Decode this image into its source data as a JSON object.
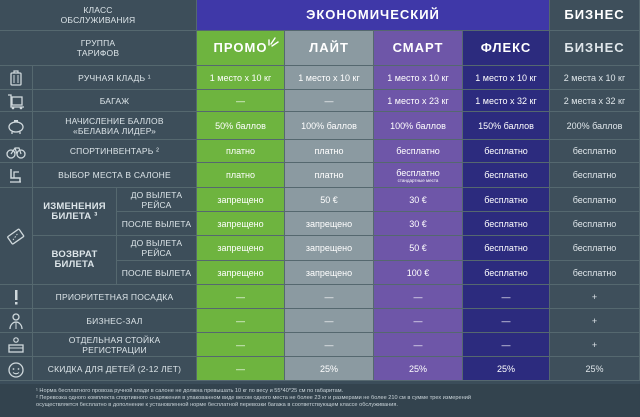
{
  "header": {
    "class_label": "КЛАСС\nОБСЛУЖИВАНИЯ",
    "economy": "ЭКОНОМИЧЕСКИЙ",
    "business": "БИЗНЕС",
    "group_label": "ГРУППА\nТАРИФОВ",
    "tariffs": [
      "ПРОМО",
      "ЛАЙТ",
      "СМАРТ",
      "ФЛЕКС",
      "БИЗНЕС"
    ]
  },
  "rows": {
    "hand_luggage": {
      "label": "РУЧНАЯ КЛАДЬ ¹",
      "icon": "suitcase-icon",
      "values": [
        "1 место х 10 кг",
        "1 место х 10 кг",
        "1 место х 10 кг",
        "1 место х 10 кг",
        "2 места х 10 кг"
      ]
    },
    "baggage": {
      "label": "БАГАЖ",
      "icon": "baggage-cart-icon",
      "values": [
        "—",
        "—",
        "1 место х 23 кг",
        "1 место х 32 кг",
        "2 места х 32 кг"
      ]
    },
    "miles": {
      "label": "НАЧИСЛЕНИЕ БАЛЛОВ\n«БЕЛАВИА ЛИДЕР»",
      "icon": "piggy-bank-icon",
      "values": [
        "50% баллов",
        "100% баллов",
        "100% баллов",
        "150% баллов",
        "200% баллов"
      ]
    },
    "sport": {
      "label": "СПОРТИНВЕНТАРЬ ²",
      "icon": "bicycle-icon",
      "values": [
        "платно",
        "платно",
        "бесплатно",
        "бесплатно",
        "бесплатно"
      ]
    },
    "seat": {
      "label": "ВЫБОР МЕСТА В САЛОНЕ",
      "icon": "seat-icon",
      "values": [
        "платно",
        "платно",
        "бесплатно",
        "бесплатно",
        "бесплатно"
      ],
      "smart_note": "стандартные места"
    },
    "change": {
      "label": "ИЗМЕНЕНИЯ\nБИЛЕТА ³",
      "icon": "ticket-icon",
      "before_label": "ДО ВЫЛЕТА РЕЙСА",
      "after_label": "ПОСЛЕ ВЫЛЕТА",
      "before": [
        "запрещено",
        "50 €",
        "30 €",
        "бесплатно",
        "бесплатно"
      ],
      "after": [
        "запрещено",
        "запрещено",
        "30 €",
        "бесплатно",
        "бесплатно"
      ]
    },
    "refund": {
      "label": "ВОЗВРАТ\nБИЛЕТА",
      "before_label": "ДО ВЫЛЕТА РЕЙСА",
      "after_label": "ПОСЛЕ ВЫЛЕТА",
      "before": [
        "запрещено",
        "запрещено",
        "50 €",
        "бесплатно",
        "бесплатно"
      ],
      "after": [
        "запрещено",
        "запрещено",
        "100 €",
        "бесплатно",
        "бесплатно"
      ]
    },
    "priority": {
      "label": "ПРИОРИТЕТНАЯ ПОСАДКА",
      "icon": "exclamation-icon",
      "values": [
        "—",
        "—",
        "—",
        "—",
        "+"
      ]
    },
    "lounge": {
      "label": "БИЗНЕС-ЗАЛ",
      "icon": "person-icon",
      "values": [
        "—",
        "—",
        "—",
        "—",
        "+"
      ]
    },
    "checkin": {
      "label": "ОТДЕЛЬНАЯ СТОЙКА\nРЕГИСТРАЦИИ",
      "icon": "desk-icon",
      "values": [
        "—",
        "—",
        "—",
        "—",
        "+"
      ]
    },
    "child": {
      "label": "СКИДКА ДЛЯ ДЕТЕЙ (2-12 ЛЕТ)",
      "icon": "child-face-icon",
      "values": [
        "—",
        "25%",
        "25%",
        "25%",
        "25%"
      ]
    }
  },
  "footnotes": [
    "¹ Норма бесплатного провоза ручной клади в салоне не должна превышать 10 кг по весу и 55*40*25 см по габаритам.",
    "² Перевозка одного комплекта спортивного снаряжения в упакованном виде весом одного места не более 23 кг и размерами не более 210 см в сумме трех измерений",
    "осуществляется бесплатно в дополнение к установленной норме бесплатной перевозки багажа в соответствующем классе обслуживания."
  ],
  "colors": {
    "promo": "#6eb43f",
    "light": "#8b9aa1",
    "smart": "#6e56a8",
    "flex": "#2c2b7e",
    "business": "#3e4f5b",
    "economy_header": "#3f38a8"
  }
}
